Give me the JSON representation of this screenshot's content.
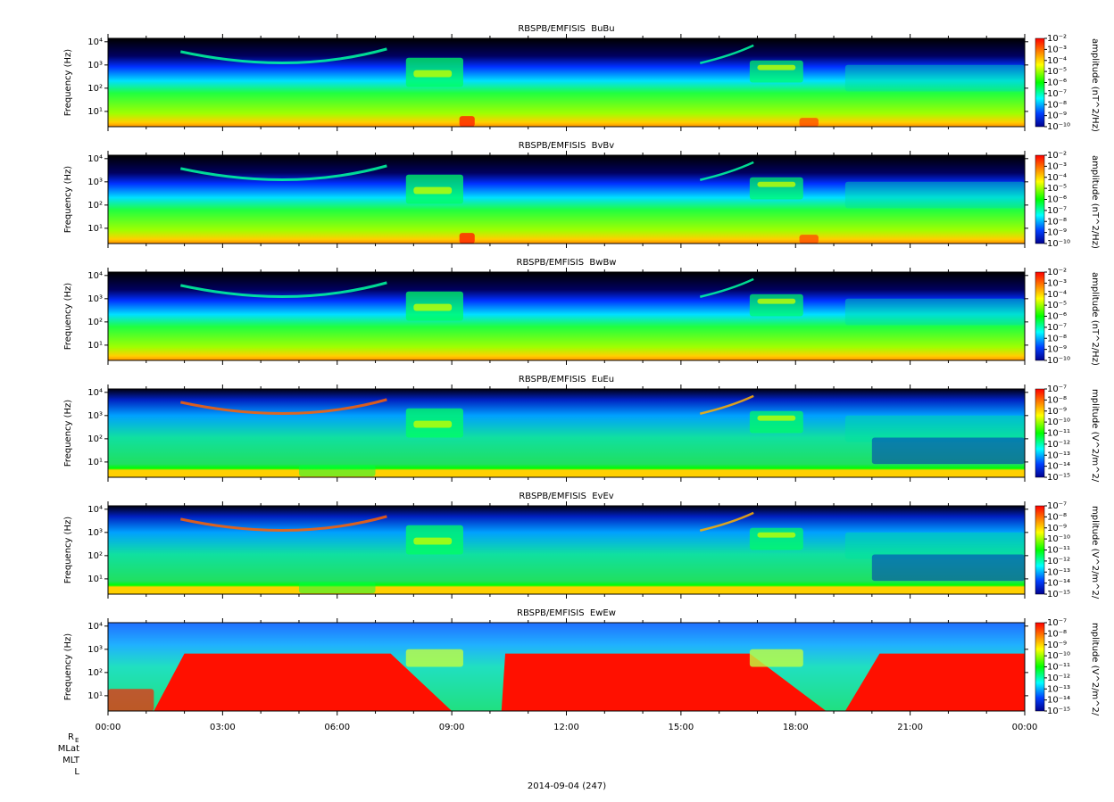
{
  "chart_data": [
    {
      "type": "spectrogram",
      "title": "RBSPB/EMFISIS  BuBu",
      "ylabel": "Frequency (Hz)",
      "yscale": "log",
      "ylim": [
        2.2,
        14000
      ],
      "yticks": [
        {
          "value": 10,
          "label": "10¹"
        },
        {
          "value": 100,
          "label": "10²"
        },
        {
          "value": 1000,
          "label": "10³"
        },
        {
          "value": 10000,
          "label": "10⁴"
        }
      ],
      "colorbar_label": "amplitude (nT^2/Hz)",
      "clim": [
        1e-10,
        0.01
      ],
      "cticks": [
        {
          "value": 0.01,
          "label": "10⁻²"
        },
        {
          "value": 0.001,
          "label": "10⁻³"
        },
        {
          "value": 0.0001,
          "label": "10⁻⁴"
        },
        {
          "value": 1e-05,
          "label": "10⁻⁵"
        },
        {
          "value": 1e-06,
          "label": "10⁻⁶"
        },
        {
          "value": 1e-07,
          "label": "10⁻⁷"
        },
        {
          "value": 1e-08,
          "label": "10⁻⁸"
        },
        {
          "value": 1e-09,
          "label": "10⁻⁹"
        },
        {
          "value": 1e-10,
          "label": "10⁻¹⁰"
        }
      ]
    },
    {
      "type": "spectrogram",
      "title": "RBSPB/EMFISIS  BvBv",
      "ylabel": "Frequency (Hz)",
      "yscale": "log",
      "ylim": [
        2.2,
        14000
      ],
      "yticks": [
        {
          "value": 10,
          "label": "10¹"
        },
        {
          "value": 100,
          "label": "10²"
        },
        {
          "value": 1000,
          "label": "10³"
        },
        {
          "value": 10000,
          "label": "10⁴"
        }
      ],
      "colorbar_label": "amplitude (nT^2/Hz)",
      "clim": [
        1e-10,
        0.01
      ],
      "cticks": [
        {
          "value": 0.01,
          "label": "10⁻²"
        },
        {
          "value": 0.001,
          "label": "10⁻³"
        },
        {
          "value": 0.0001,
          "label": "10⁻⁴"
        },
        {
          "value": 1e-05,
          "label": "10⁻⁵"
        },
        {
          "value": 1e-06,
          "label": "10⁻⁶"
        },
        {
          "value": 1e-07,
          "label": "10⁻⁷"
        },
        {
          "value": 1e-08,
          "label": "10⁻⁸"
        },
        {
          "value": 1e-09,
          "label": "10⁻⁹"
        },
        {
          "value": 1e-10,
          "label": "10⁻¹⁰"
        }
      ]
    },
    {
      "type": "spectrogram",
      "title": "RBSPB/EMFISIS  BwBw",
      "ylabel": "Frequency (Hz)",
      "yscale": "log",
      "ylim": [
        2.2,
        14000
      ],
      "yticks": [
        {
          "value": 10,
          "label": "10¹"
        },
        {
          "value": 100,
          "label": "10²"
        },
        {
          "value": 1000,
          "label": "10³"
        },
        {
          "value": 10000,
          "label": "10⁴"
        }
      ],
      "colorbar_label": "amplitude (nT^2/Hz)",
      "clim": [
        1e-10,
        0.01
      ],
      "cticks": [
        {
          "value": 0.01,
          "label": "10⁻²"
        },
        {
          "value": 0.001,
          "label": "10⁻³"
        },
        {
          "value": 0.0001,
          "label": "10⁻⁴"
        },
        {
          "value": 1e-05,
          "label": "10⁻⁵"
        },
        {
          "value": 1e-06,
          "label": "10⁻⁶"
        },
        {
          "value": 1e-07,
          "label": "10⁻⁷"
        },
        {
          "value": 1e-08,
          "label": "10⁻⁸"
        },
        {
          "value": 1e-09,
          "label": "10⁻⁹"
        },
        {
          "value": 1e-10,
          "label": "10⁻¹⁰"
        }
      ]
    },
    {
      "type": "spectrogram",
      "title": "RBSPB/EMFISIS  EuEu",
      "ylabel": "Frequency (Hz)",
      "yscale": "log",
      "ylim": [
        2.2,
        14000
      ],
      "yticks": [
        {
          "value": 10,
          "label": "10¹"
        },
        {
          "value": 100,
          "label": "10²"
        },
        {
          "value": 1000,
          "label": "10³"
        },
        {
          "value": 10000,
          "label": "10⁴"
        }
      ],
      "colorbar_label": "mplitude (V^2/m^2/",
      "clim": [
        1e-15,
        1e-07
      ],
      "cticks": [
        {
          "value": 1e-07,
          "label": "10⁻⁷"
        },
        {
          "value": 1e-08,
          "label": "10⁻⁸"
        },
        {
          "value": 1e-09,
          "label": "10⁻⁹"
        },
        {
          "value": 1e-10,
          "label": "10⁻¹⁰"
        },
        {
          "value": 1e-11,
          "label": "10⁻¹¹"
        },
        {
          "value": 1e-12,
          "label": "10⁻¹²"
        },
        {
          "value": 1e-13,
          "label": "10⁻¹³"
        },
        {
          "value": 1e-14,
          "label": "10⁻¹⁴"
        },
        {
          "value": 1e-15,
          "label": "10⁻¹⁵"
        }
      ]
    },
    {
      "type": "spectrogram",
      "title": "RBSPB/EMFISIS  EvEv",
      "ylabel": "Frequency (Hz)",
      "yscale": "log",
      "ylim": [
        2.2,
        14000
      ],
      "yticks": [
        {
          "value": 10,
          "label": "10¹"
        },
        {
          "value": 100,
          "label": "10²"
        },
        {
          "value": 1000,
          "label": "10³"
        },
        {
          "value": 10000,
          "label": "10⁴"
        }
      ],
      "colorbar_label": "mplitude (V^2/m^2/",
      "clim": [
        1e-15,
        1e-07
      ],
      "cticks": [
        {
          "value": 1e-07,
          "label": "10⁻⁷"
        },
        {
          "value": 1e-08,
          "label": "10⁻⁸"
        },
        {
          "value": 1e-09,
          "label": "10⁻⁹"
        },
        {
          "value": 1e-10,
          "label": "10⁻¹⁰"
        },
        {
          "value": 1e-11,
          "label": "10⁻¹¹"
        },
        {
          "value": 1e-12,
          "label": "10⁻¹²"
        },
        {
          "value": 1e-13,
          "label": "10⁻¹³"
        },
        {
          "value": 1e-14,
          "label": "10⁻¹⁴"
        },
        {
          "value": 1e-15,
          "label": "10⁻¹⁵"
        }
      ]
    },
    {
      "type": "spectrogram",
      "title": "RBSPB/EMFISIS  EwEw",
      "ylabel": "Frequency (Hz)",
      "yscale": "log",
      "ylim": [
        2.2,
        14000
      ],
      "yticks": [
        {
          "value": 10,
          "label": "10¹"
        },
        {
          "value": 100,
          "label": "10²"
        },
        {
          "value": 1000,
          "label": "10³"
        },
        {
          "value": 10000,
          "label": "10⁴"
        }
      ],
      "colorbar_label": "mplitude (V^2/m^2/",
      "clim": [
        1e-15,
        1e-07
      ],
      "cticks": [
        {
          "value": 1e-07,
          "label": "10⁻⁷"
        },
        {
          "value": 1e-08,
          "label": "10⁻⁸"
        },
        {
          "value": 1e-09,
          "label": "10⁻⁹"
        },
        {
          "value": 1e-10,
          "label": "10⁻¹⁰"
        },
        {
          "value": 1e-11,
          "label": "10⁻¹¹"
        },
        {
          "value": 1e-12,
          "label": "10⁻¹²"
        },
        {
          "value": 1e-13,
          "label": "10⁻¹³"
        },
        {
          "value": 1e-14,
          "label": "10⁻¹⁴"
        },
        {
          "value": 1e-15,
          "label": "10⁻¹⁵"
        }
      ]
    }
  ],
  "time_axis": {
    "xlim": [
      0,
      24
    ],
    "xticks": [
      {
        "value": 0,
        "label": "00:00"
      },
      {
        "value": 3,
        "label": "03:00"
      },
      {
        "value": 6,
        "label": "06:00"
      },
      {
        "value": 9,
        "label": "09:00"
      },
      {
        "value": 12,
        "label": "12:00"
      },
      {
        "value": 15,
        "label": "15:00"
      },
      {
        "value": 18,
        "label": "18:00"
      },
      {
        "value": 21,
        "label": "21:00"
      },
      {
        "value": 24,
        "label": "00:00"
      }
    ],
    "xminorticks": [
      1,
      2,
      4,
      5,
      7,
      8,
      10,
      11,
      13,
      14,
      16,
      17,
      19,
      20,
      22,
      23
    ],
    "ephemeris_labels": [
      "R",
      "MLat",
      "MLT",
      "L"
    ],
    "ephemeris_subscript": "E",
    "date_label": "2014-09-04 (247)"
  }
}
